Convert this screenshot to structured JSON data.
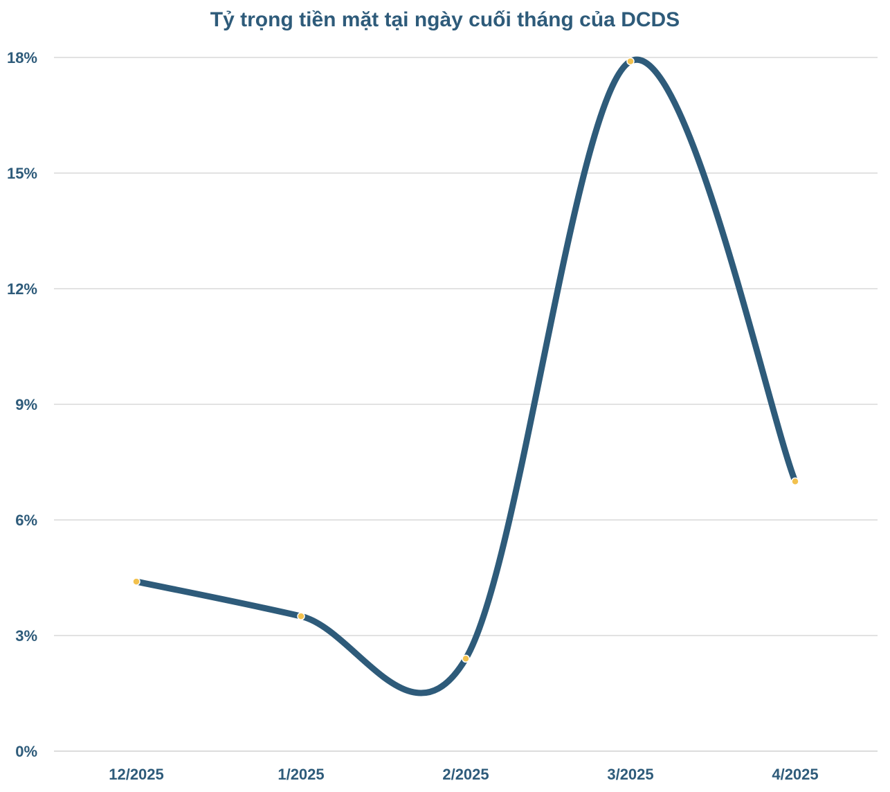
{
  "chart_data": {
    "type": "line",
    "title": "Tỷ trọng tiền mặt tại ngày cuối tháng của DCDS",
    "xlabel": "",
    "ylabel": "",
    "categories": [
      "12/2025",
      "1/2025",
      "2/2025",
      "3/2025",
      "4/2025"
    ],
    "series": [
      {
        "values": [
          4.4,
          3.5,
          2.4,
          17.9,
          7.0
        ]
      }
    ],
    "y_ticks": [
      "0%",
      "3%",
      "6%",
      "9%",
      "12%",
      "15%",
      "18%"
    ],
    "ylim": [
      0,
      18
    ],
    "grid": true,
    "smooth": true,
    "legend": "none",
    "colors": {
      "line": "#2e5b7a",
      "marker": "#f2c14e",
      "grid": "#d0d0d0",
      "text": "#2e5b7a"
    }
  }
}
